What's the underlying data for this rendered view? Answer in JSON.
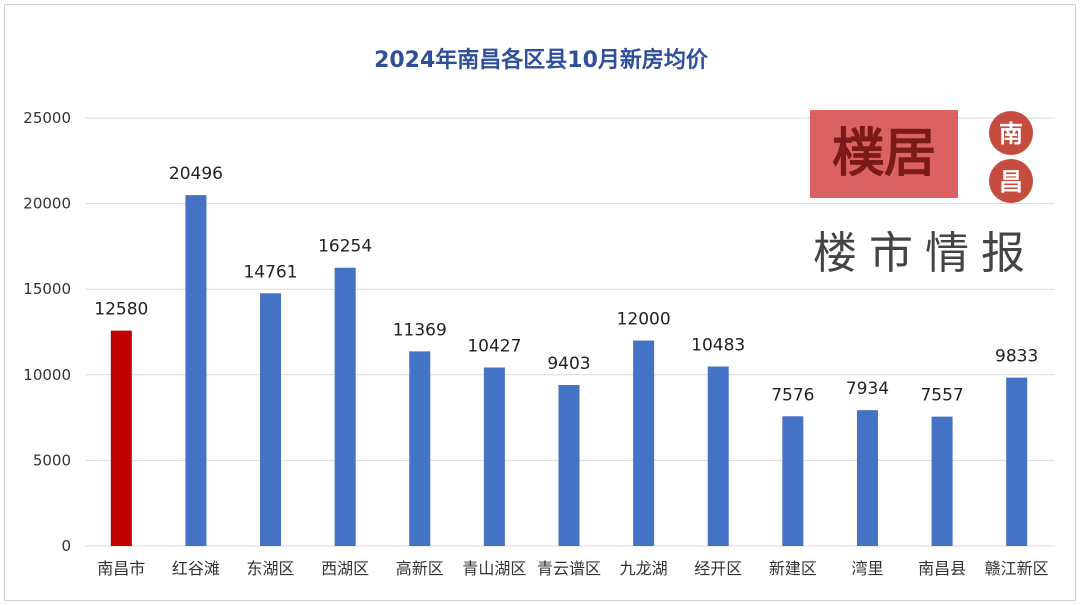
{
  "chart_data": {
    "type": "bar",
    "title": "2024年南昌各区县10月新房均价",
    "categories": [
      "南昌市",
      "红谷滩",
      "东湖区",
      "西湖区",
      "高新区",
      "青山湖区",
      "青云谱区",
      "九龙湖",
      "经开区",
      "新建区",
      "湾里",
      "南昌县",
      "赣江新区"
    ],
    "values": [
      12580,
      20496,
      14761,
      16254,
      11369,
      10427,
      9403,
      12000,
      10483,
      7576,
      7934,
      7557,
      9833
    ],
    "ylim": [
      0,
      25000
    ],
    "yticks": [
      0,
      5000,
      10000,
      15000,
      20000,
      25000
    ],
    "grid": true,
    "legend": "none",
    "colors": {
      "highlight": "#c00000",
      "bar": "#4472c4",
      "grid": "#d9d9d9",
      "title": "#2f4f9a"
    },
    "highlight_index": 0
  },
  "logo": {
    "stamp_chars": [
      "南",
      "昌"
    ],
    "banner_text": "楼市情报",
    "box_text": "樸居",
    "stamp_color": "#c0392b",
    "box_color": "#d64545"
  }
}
